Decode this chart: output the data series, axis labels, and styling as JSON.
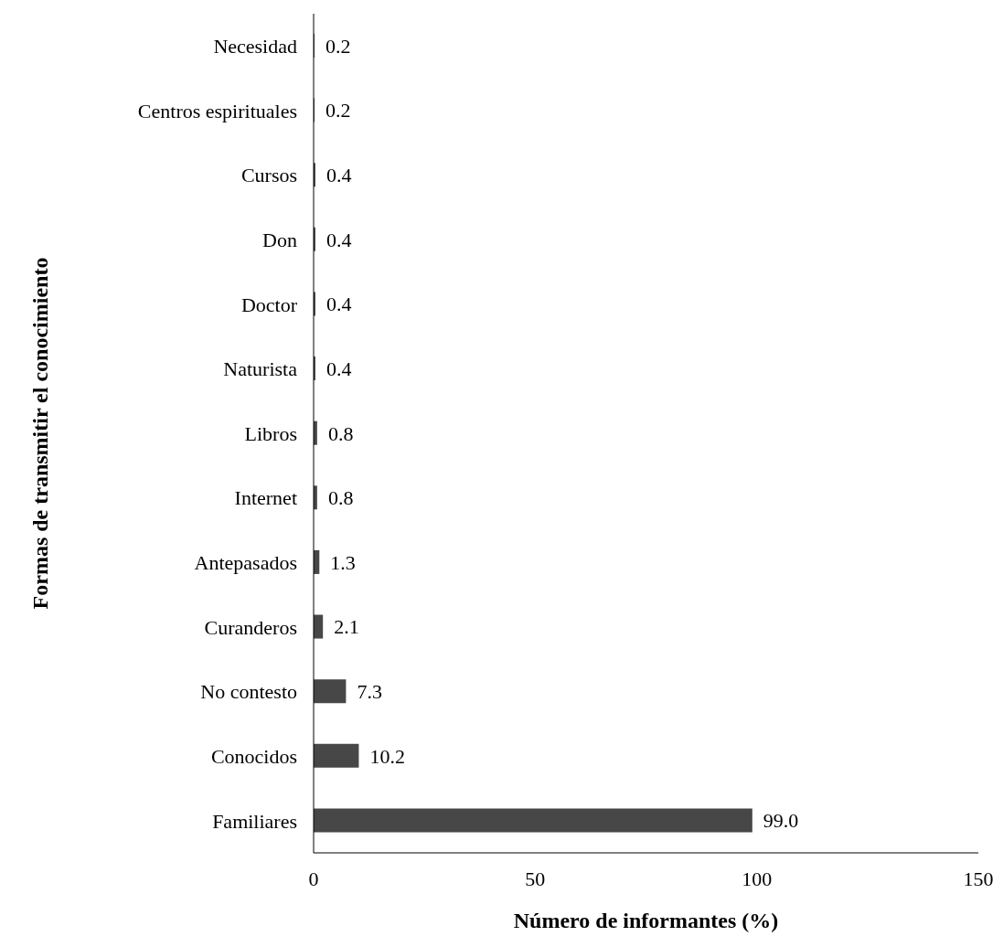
{
  "chart_data": {
    "type": "bar",
    "orientation": "horizontal",
    "xlabel": "Número de informantes (%)",
    "ylabel": "Formas de  transmitir el conocimiento",
    "categories": [
      "Necesidad",
      "Centros espirituales",
      "Cursos",
      "Don",
      "Doctor",
      "Naturista",
      "Libros",
      "Internet",
      "Antepasados",
      "Curanderos",
      "No contesto",
      "Conocidos",
      "Familiares"
    ],
    "values": [
      0.2,
      0.2,
      0.4,
      0.4,
      0.4,
      0.4,
      0.8,
      0.8,
      1.3,
      2.1,
      7.3,
      10.2,
      99.0
    ],
    "value_labels": [
      "0.2",
      "0.2",
      "0.4",
      "0.4",
      "0.4",
      "0.4",
      "0.8",
      "0.8",
      "1.3",
      "2.1",
      "7.3",
      "10.2",
      "99.0"
    ],
    "color": "#474747",
    "xlim": [
      0,
      150
    ],
    "xticks": [
      0,
      50,
      100,
      150
    ],
    "grid": false
  }
}
